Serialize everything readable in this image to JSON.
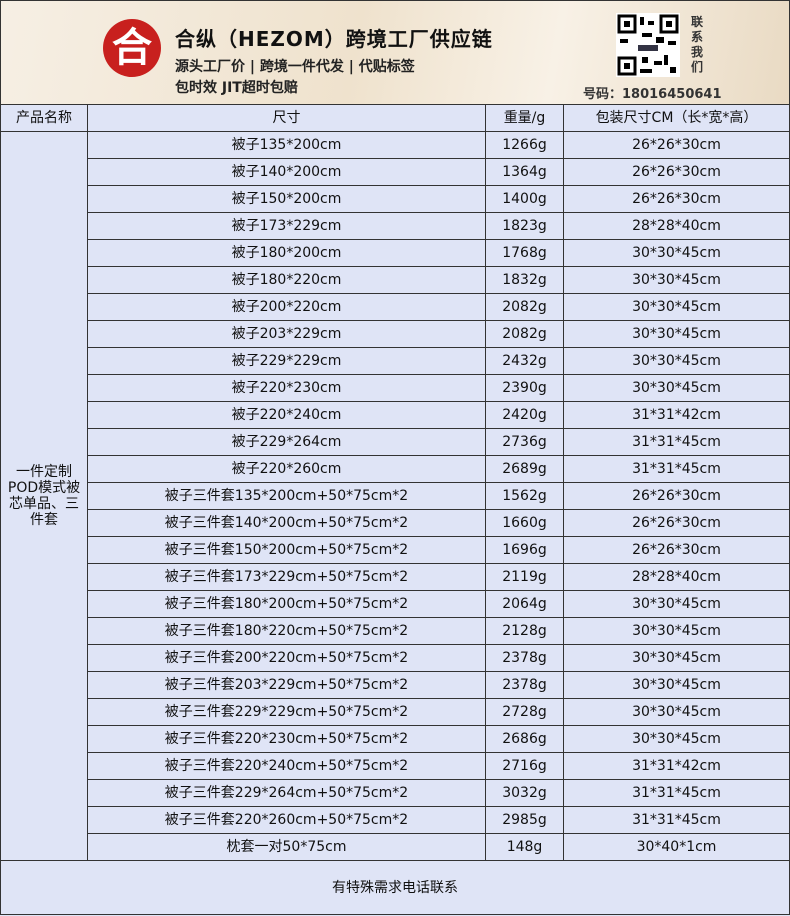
{
  "header": {
    "logo": "合",
    "title": "合纵（HEZOM）跨境工厂供应链",
    "line1": "源头工厂价 | 跨境一件代发 | 代贴标签",
    "line2": "包时效 JIT超时包赔",
    "contact": "联系我们",
    "phone": "号码：18016450641"
  },
  "table": {
    "columns": [
      "产品名称",
      "尺寸",
      "重量/g",
      "包装尺寸CM（长*宽*高）"
    ],
    "group_label": "一件定制POD模式被芯单品、三件套",
    "rows": [
      [
        "被子135*200cm",
        "1266g",
        "26*26*30cm"
      ],
      [
        "被子140*200cm",
        "1364g",
        "26*26*30cm"
      ],
      [
        "被子150*200cm",
        "1400g",
        "26*26*30cm"
      ],
      [
        "被子173*229cm",
        "1823g",
        "28*28*40cm"
      ],
      [
        "被子180*200cm",
        "1768g",
        "30*30*45cm"
      ],
      [
        "被子180*220cm",
        "1832g",
        "30*30*45cm"
      ],
      [
        "被子200*220cm",
        "2082g",
        "30*30*45cm"
      ],
      [
        "被子203*229cm",
        "2082g",
        "30*30*45cm"
      ],
      [
        "被子229*229cm",
        "2432g",
        "30*30*45cm"
      ],
      [
        "被子220*230cm",
        "2390g",
        "30*30*45cm"
      ],
      [
        "被子220*240cm",
        "2420g",
        "31*31*42cm"
      ],
      [
        "被子229*264cm",
        "2736g",
        "31*31*45cm"
      ],
      [
        "被子220*260cm",
        "2689g",
        "31*31*45cm"
      ],
      [
        "被子三件套135*200cm+50*75cm*2",
        "1562g",
        "26*26*30cm"
      ],
      [
        "被子三件套140*200cm+50*75cm*2",
        "1660g",
        "26*26*30cm"
      ],
      [
        "被子三件套150*200cm+50*75cm*2",
        "1696g",
        "26*26*30cm"
      ],
      [
        "被子三件套173*229cm+50*75cm*2",
        "2119g",
        "28*28*40cm"
      ],
      [
        "被子三件套180*200cm+50*75cm*2",
        "2064g",
        "30*30*45cm"
      ],
      [
        "被子三件套180*220cm+50*75cm*2",
        "2128g",
        "30*30*45cm"
      ],
      [
        "被子三件套200*220cm+50*75cm*2",
        "2378g",
        "30*30*45cm"
      ],
      [
        "被子三件套203*229cm+50*75cm*2",
        "2378g",
        "30*30*45cm"
      ],
      [
        "被子三件套229*229cm+50*75cm*2",
        "2728g",
        "30*30*45cm"
      ],
      [
        "被子三件套220*230cm+50*75cm*2",
        "2686g",
        "30*30*45cm"
      ],
      [
        "被子三件套220*240cm+50*75cm*2",
        "2716g",
        "31*31*42cm"
      ],
      [
        "被子三件套229*264cm+50*75cm*2",
        "3032g",
        "31*31*45cm"
      ],
      [
        "被子三件套220*260cm+50*75cm*2",
        "2985g",
        "31*31*45cm"
      ],
      [
        "枕套一对50*75cm",
        "148g",
        "30*40*1cm"
      ]
    ]
  },
  "footer": "有特殊需求电话联系"
}
